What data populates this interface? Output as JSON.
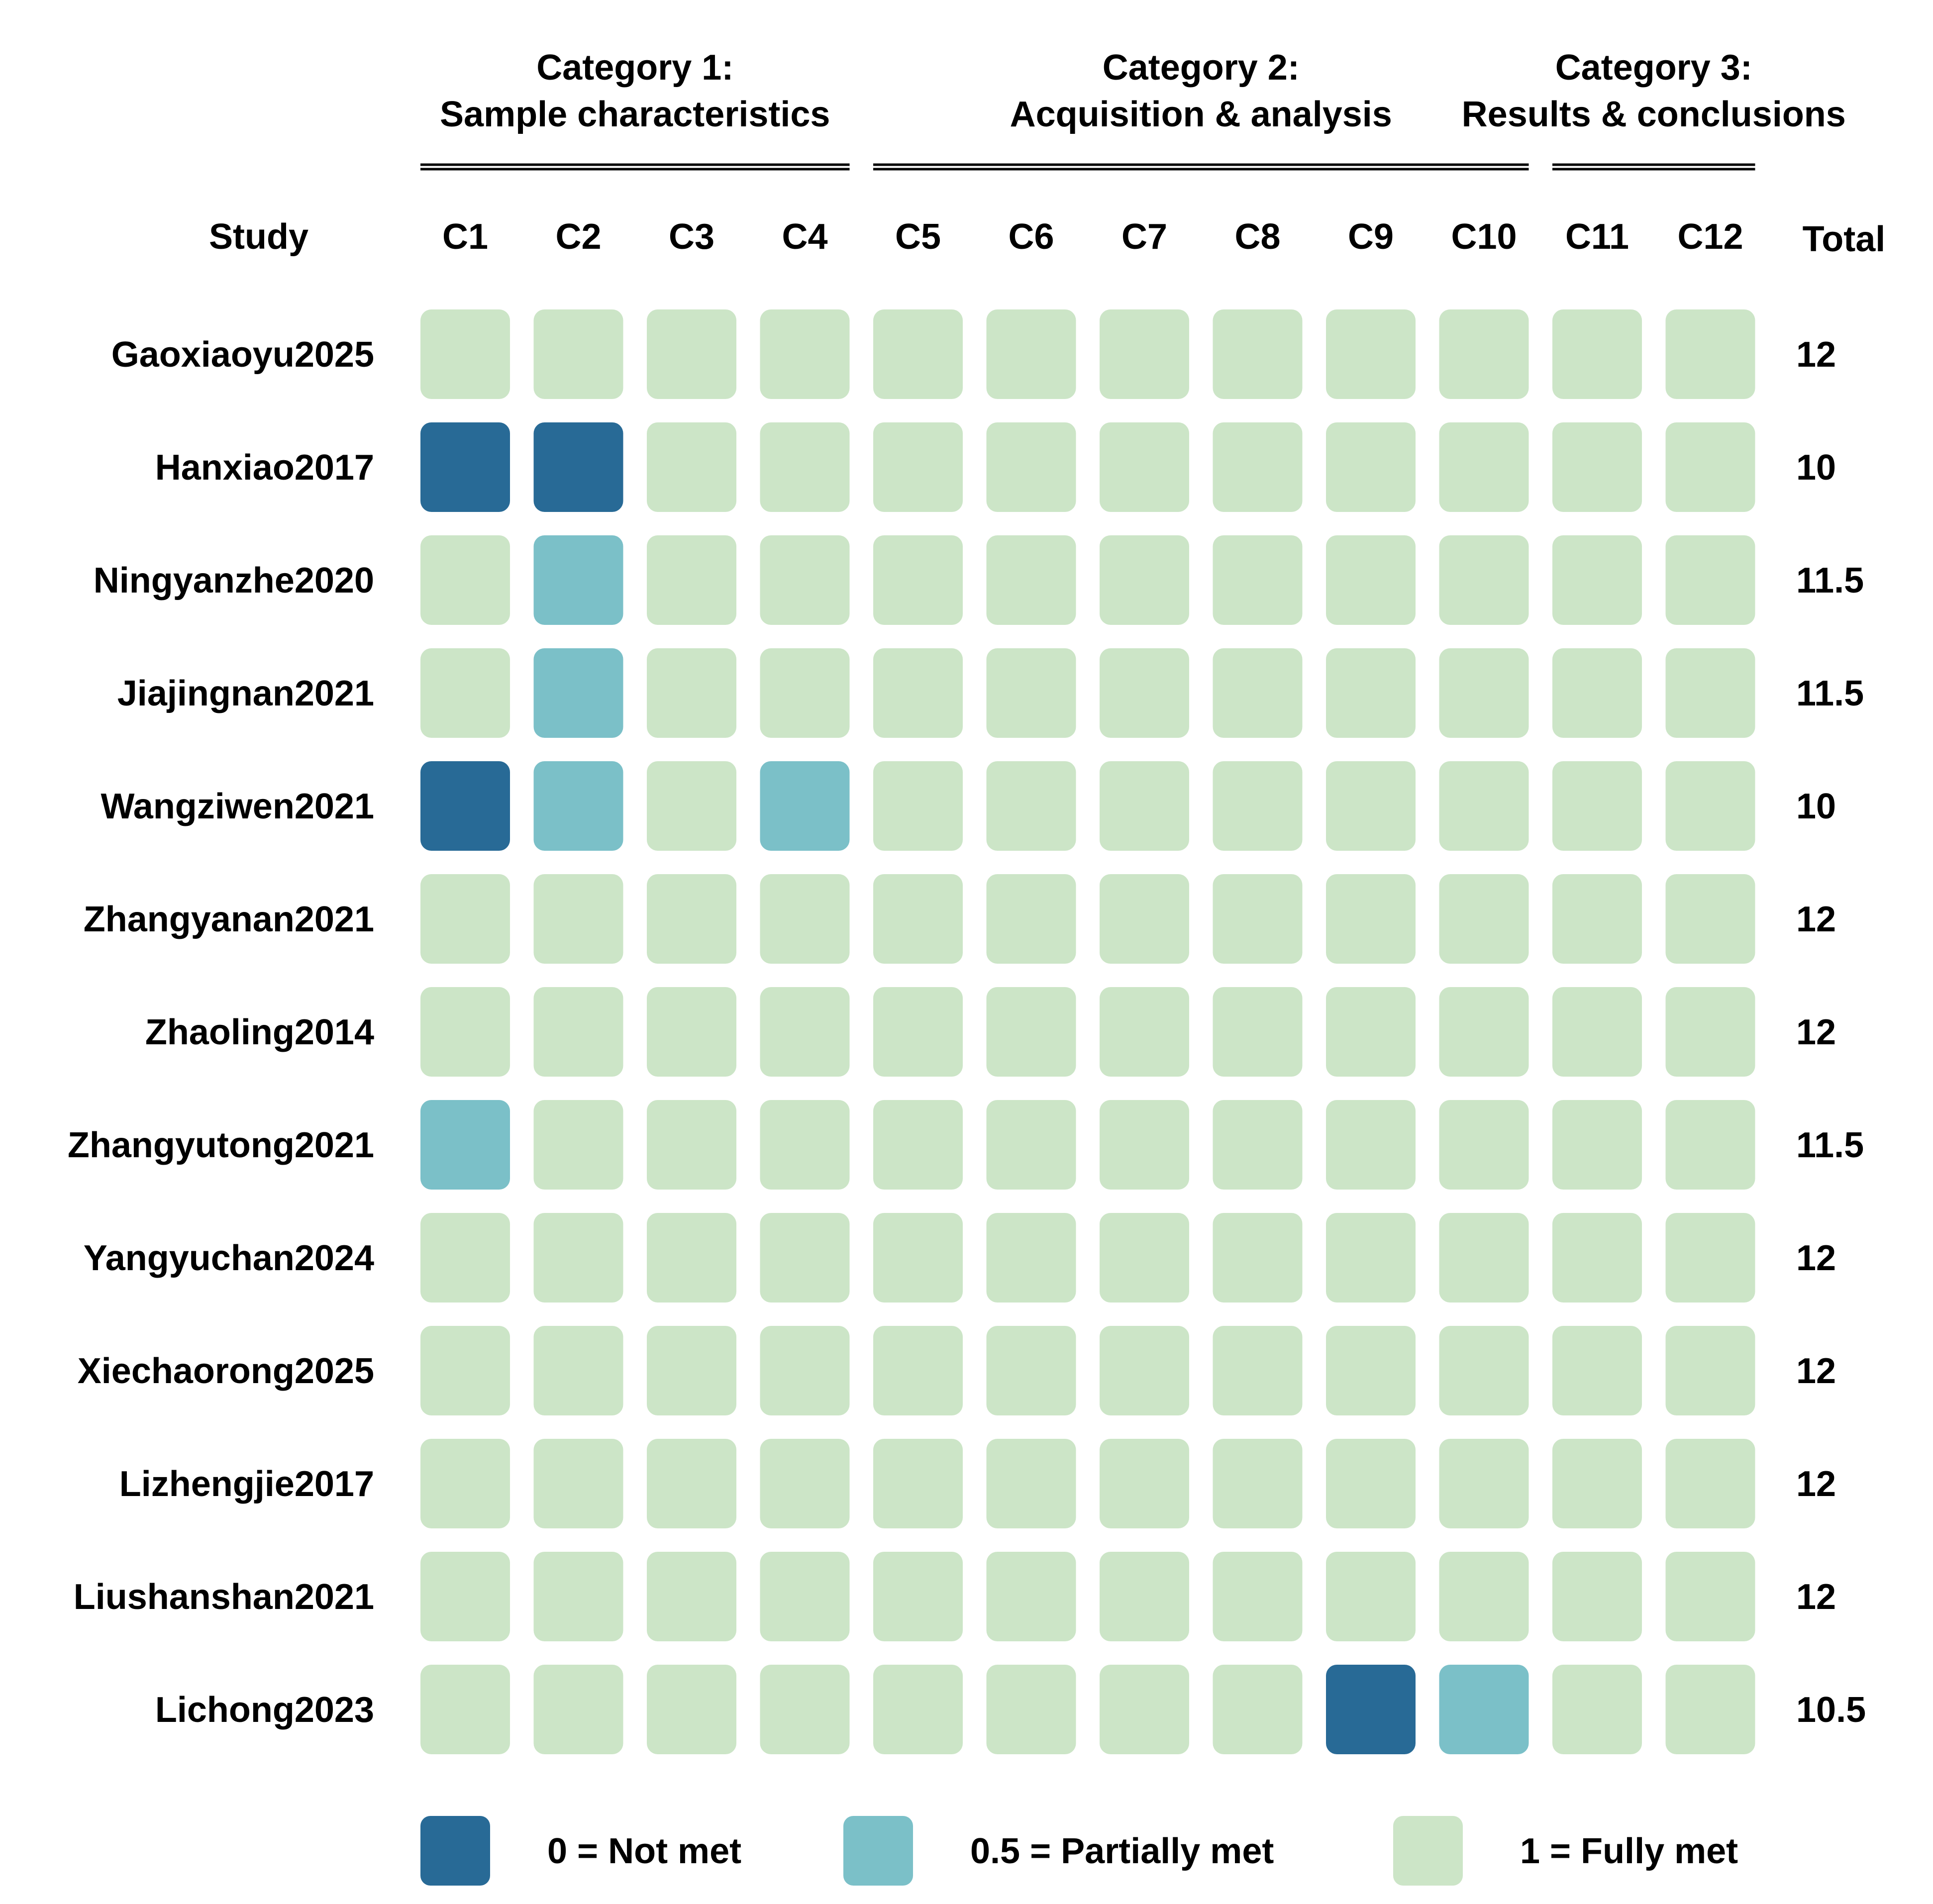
{
  "chart_data": {
    "type": "heatmap",
    "row_header": "Study",
    "total_header": "Total",
    "categories": [
      {
        "line1": "Category 1:",
        "line2": "Sample characteristics",
        "columns": [
          "C1",
          "C2",
          "C3",
          "C4"
        ]
      },
      {
        "line1": "Category 2:",
        "line2": "Acquisition & analysis",
        "columns": [
          "C5",
          "C6",
          "C7",
          "C8",
          "C9",
          "C10"
        ]
      },
      {
        "line1": "Category 3:",
        "line2": "Results & conclusions",
        "columns": [
          "C11",
          "C12"
        ]
      }
    ],
    "columns": [
      "C1",
      "C2",
      "C3",
      "C4",
      "C5",
      "C6",
      "C7",
      "C8",
      "C9",
      "C10",
      "C11",
      "C12"
    ],
    "rows": [
      {
        "study": "Gaoxiaoyu2025",
        "scores": [
          1,
          1,
          1,
          1,
          1,
          1,
          1,
          1,
          1,
          1,
          1,
          1
        ],
        "total": "12"
      },
      {
        "study": "Hanxiao2017",
        "scores": [
          0,
          0,
          1,
          1,
          1,
          1,
          1,
          1,
          1,
          1,
          1,
          1
        ],
        "total": "10"
      },
      {
        "study": "Ningyanzhe2020",
        "scores": [
          1,
          0.5,
          1,
          1,
          1,
          1,
          1,
          1,
          1,
          1,
          1,
          1
        ],
        "total": "11.5"
      },
      {
        "study": "Jiajingnan2021",
        "scores": [
          1,
          0.5,
          1,
          1,
          1,
          1,
          1,
          1,
          1,
          1,
          1,
          1
        ],
        "total": "11.5"
      },
      {
        "study": "Wangziwen2021",
        "scores": [
          0,
          0.5,
          1,
          0.5,
          1,
          1,
          1,
          1,
          1,
          1,
          1,
          1
        ],
        "total": "10"
      },
      {
        "study": "Zhangyanan2021",
        "scores": [
          1,
          1,
          1,
          1,
          1,
          1,
          1,
          1,
          1,
          1,
          1,
          1
        ],
        "total": "12"
      },
      {
        "study": "Zhaoling2014",
        "scores": [
          1,
          1,
          1,
          1,
          1,
          1,
          1,
          1,
          1,
          1,
          1,
          1
        ],
        "total": "12"
      },
      {
        "study": "Zhangyutong2021",
        "scores": [
          0.5,
          1,
          1,
          1,
          1,
          1,
          1,
          1,
          1,
          1,
          1,
          1
        ],
        "total": "11.5"
      },
      {
        "study": "Yangyuchan2024",
        "scores": [
          1,
          1,
          1,
          1,
          1,
          1,
          1,
          1,
          1,
          1,
          1,
          1
        ],
        "total": "12"
      },
      {
        "study": "Xiechaorong2025",
        "scores": [
          1,
          1,
          1,
          1,
          1,
          1,
          1,
          1,
          1,
          1,
          1,
          1
        ],
        "total": "12"
      },
      {
        "study": "Lizhengjie2017",
        "scores": [
          1,
          1,
          1,
          1,
          1,
          1,
          1,
          1,
          1,
          1,
          1,
          1
        ],
        "total": "12"
      },
      {
        "study": "Liushanshan2021",
        "scores": [
          1,
          1,
          1,
          1,
          1,
          1,
          1,
          1,
          1,
          1,
          1,
          1
        ],
        "total": "12"
      },
      {
        "study": "Lichong2023",
        "scores": [
          1,
          1,
          1,
          1,
          1,
          1,
          1,
          1,
          0,
          0.5,
          1,
          1
        ],
        "total": "10.5"
      }
    ],
    "legend": [
      {
        "value": 0,
        "label": "0 = Not met",
        "color": "#286a96"
      },
      {
        "value": 0.5,
        "label": "0.5 = Partially met",
        "color": "#7bc0c8"
      },
      {
        "value": 1,
        "label": "1 = Fully met",
        "color": "#cce5c7"
      }
    ],
    "legend_placement": "bottom"
  }
}
